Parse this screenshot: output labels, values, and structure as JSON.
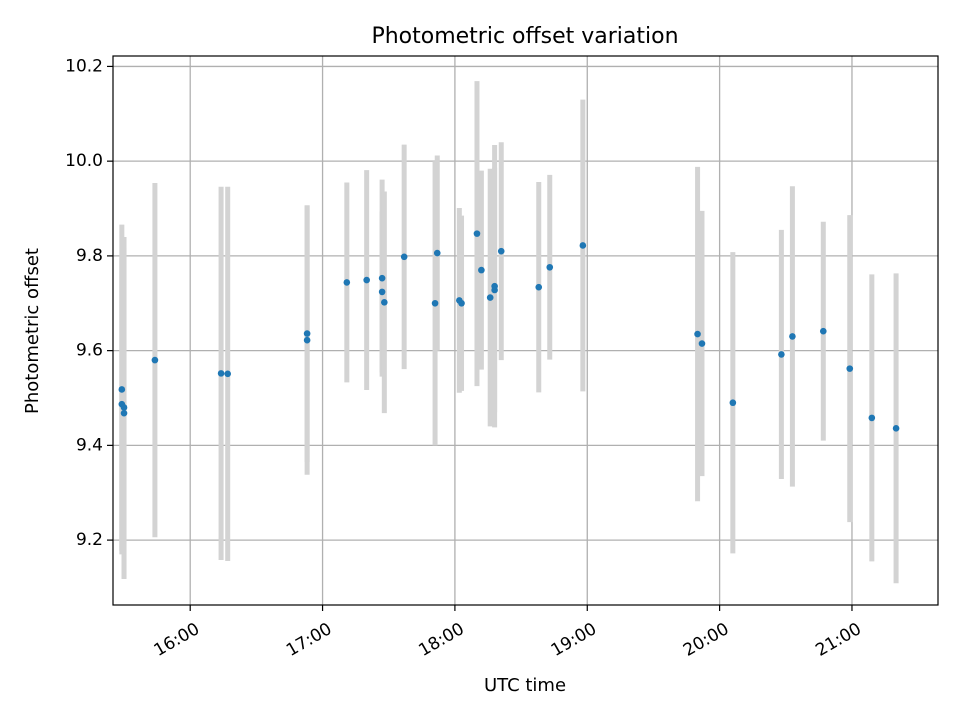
{
  "chart_data": {
    "type": "scatter",
    "title": "Photometric offset variation",
    "xlabel": "UTC time",
    "ylabel": "Photometric offset",
    "x_scale": "time",
    "x_tick_labels": [
      "16:00",
      "17:00",
      "18:00",
      "19:00",
      "20:00",
      "21:00"
    ],
    "x_ticks": [
      "16:00",
      "17:00",
      "18:00",
      "19:00",
      "20:00",
      "21:00"
    ],
    "xlim": [
      "15:25",
      "21:39"
    ],
    "y_ticks": [
      9.2,
      9.4,
      9.6,
      9.8,
      10.0,
      10.2
    ],
    "y_tick_labels": [
      "9.2",
      "9.4",
      "9.6",
      "9.8",
      "10.0",
      "10.2"
    ],
    "ylim": [
      9.063,
      10.222
    ],
    "grid": true,
    "legend": "none",
    "colors": {
      "point": "#1f77b4",
      "errorbar": "#d3d3d3"
    },
    "series": [
      {
        "points": [
          {
            "x": "15:29",
            "y": 9.518,
            "err": 0.348
          },
          {
            "x": "15:29",
            "y": 9.487,
            "err": 0.31
          },
          {
            "x": "15:30",
            "y": 9.468,
            "err": 0.35
          },
          {
            "x": "15:30",
            "y": 9.48,
            "err": 0.36
          },
          {
            "x": "15:44",
            "y": 9.58,
            "err": 0.374
          },
          {
            "x": "16:14",
            "y": 9.552,
            "err": 0.394
          },
          {
            "x": "16:17",
            "y": 9.551,
            "err": 0.395
          },
          {
            "x": "16:53",
            "y": 9.636,
            "err": 0.271
          },
          {
            "x": "16:53",
            "y": 9.622,
            "err": 0.284
          },
          {
            "x": "17:11",
            "y": 9.744,
            "err": 0.211
          },
          {
            "x": "17:20",
            "y": 9.749,
            "err": 0.232
          },
          {
            "x": "17:27",
            "y": 9.724,
            "err": 0.17
          },
          {
            "x": "17:27",
            "y": 9.753,
            "err": 0.208
          },
          {
            "x": "17:28",
            "y": 9.702,
            "err": 0.234
          },
          {
            "x": "17:37",
            "y": 9.798,
            "err": 0.237
          },
          {
            "x": "17:51",
            "y": 9.7,
            "err": 0.3
          },
          {
            "x": "17:52",
            "y": 9.806,
            "err": 0.206
          },
          {
            "x": "18:02",
            "y": 9.706,
            "err": 0.195
          },
          {
            "x": "18:03",
            "y": 9.7,
            "err": 0.185
          },
          {
            "x": "18:10",
            "y": 9.847,
            "err": 0.322
          },
          {
            "x": "18:12",
            "y": 9.77,
            "err": 0.21
          },
          {
            "x": "18:16",
            "y": 9.712,
            "err": 0.272
          },
          {
            "x": "18:18",
            "y": 9.728,
            "err": 0.258
          },
          {
            "x": "18:18",
            "y": 9.736,
            "err": 0.298
          },
          {
            "x": "18:21",
            "y": 9.81,
            "err": 0.23
          },
          {
            "x": "18:38",
            "y": 9.734,
            "err": 0.222
          },
          {
            "x": "18:43",
            "y": 9.776,
            "err": 0.195
          },
          {
            "x": "18:58",
            "y": 9.822,
            "err": 0.308
          },
          {
            "x": "19:50",
            "y": 9.635,
            "err": 0.353
          },
          {
            "x": "19:52",
            "y": 9.615,
            "err": 0.28
          },
          {
            "x": "20:06",
            "y": 9.49,
            "err": 0.318
          },
          {
            "x": "20:28",
            "y": 9.592,
            "err": 0.263
          },
          {
            "x": "20:33",
            "y": 9.63,
            "err": 0.317
          },
          {
            "x": "20:47",
            "y": 9.641,
            "err": 0.231
          },
          {
            "x": "20:59",
            "y": 9.562,
            "err": 0.324
          },
          {
            "x": "21:09",
            "y": 9.458,
            "err": 0.303
          },
          {
            "x": "21:20",
            "y": 9.436,
            "err": 0.327
          }
        ]
      }
    ]
  }
}
